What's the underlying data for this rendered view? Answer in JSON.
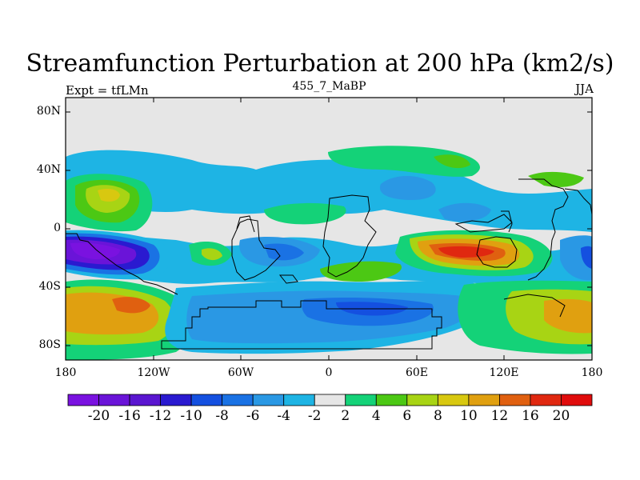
{
  "plot": {
    "title": "Streamfunction Perturbation at 200 hPa (km2/s)",
    "left_string": "Expt = tfLMn",
    "center_string": "455_7_MaBP",
    "right_string": "JJA"
  },
  "axes": {
    "y_ticks": [
      "80N",
      "40N",
      "0",
      "40S",
      "80S"
    ],
    "x_ticks": [
      "180",
      "120W",
      "60W",
      "0",
      "60E",
      "120E",
      "180"
    ]
  },
  "colorbar": {
    "labels": [
      "-20",
      "-16",
      "-12",
      "-10",
      "-8",
      "-6",
      "-4",
      "-2",
      "2",
      "4",
      "6",
      "8",
      "10",
      "12",
      "16",
      "20"
    ],
    "colors": [
      "#7a12e0",
      "#6a14d8",
      "#5a16d0",
      "#2a1ad0",
      "#1450e0",
      "#1a72e4",
      "#2a98e4",
      "#1eb4e4",
      "#e6e6e6",
      "#14d278",
      "#4cc814",
      "#a8d414",
      "#d8c810",
      "#e0a010",
      "#e06010",
      "#e02810",
      "#e00c0c"
    ]
  },
  "colors": {
    "background": "#e6e6e6",
    "frame": "#000000"
  }
}
